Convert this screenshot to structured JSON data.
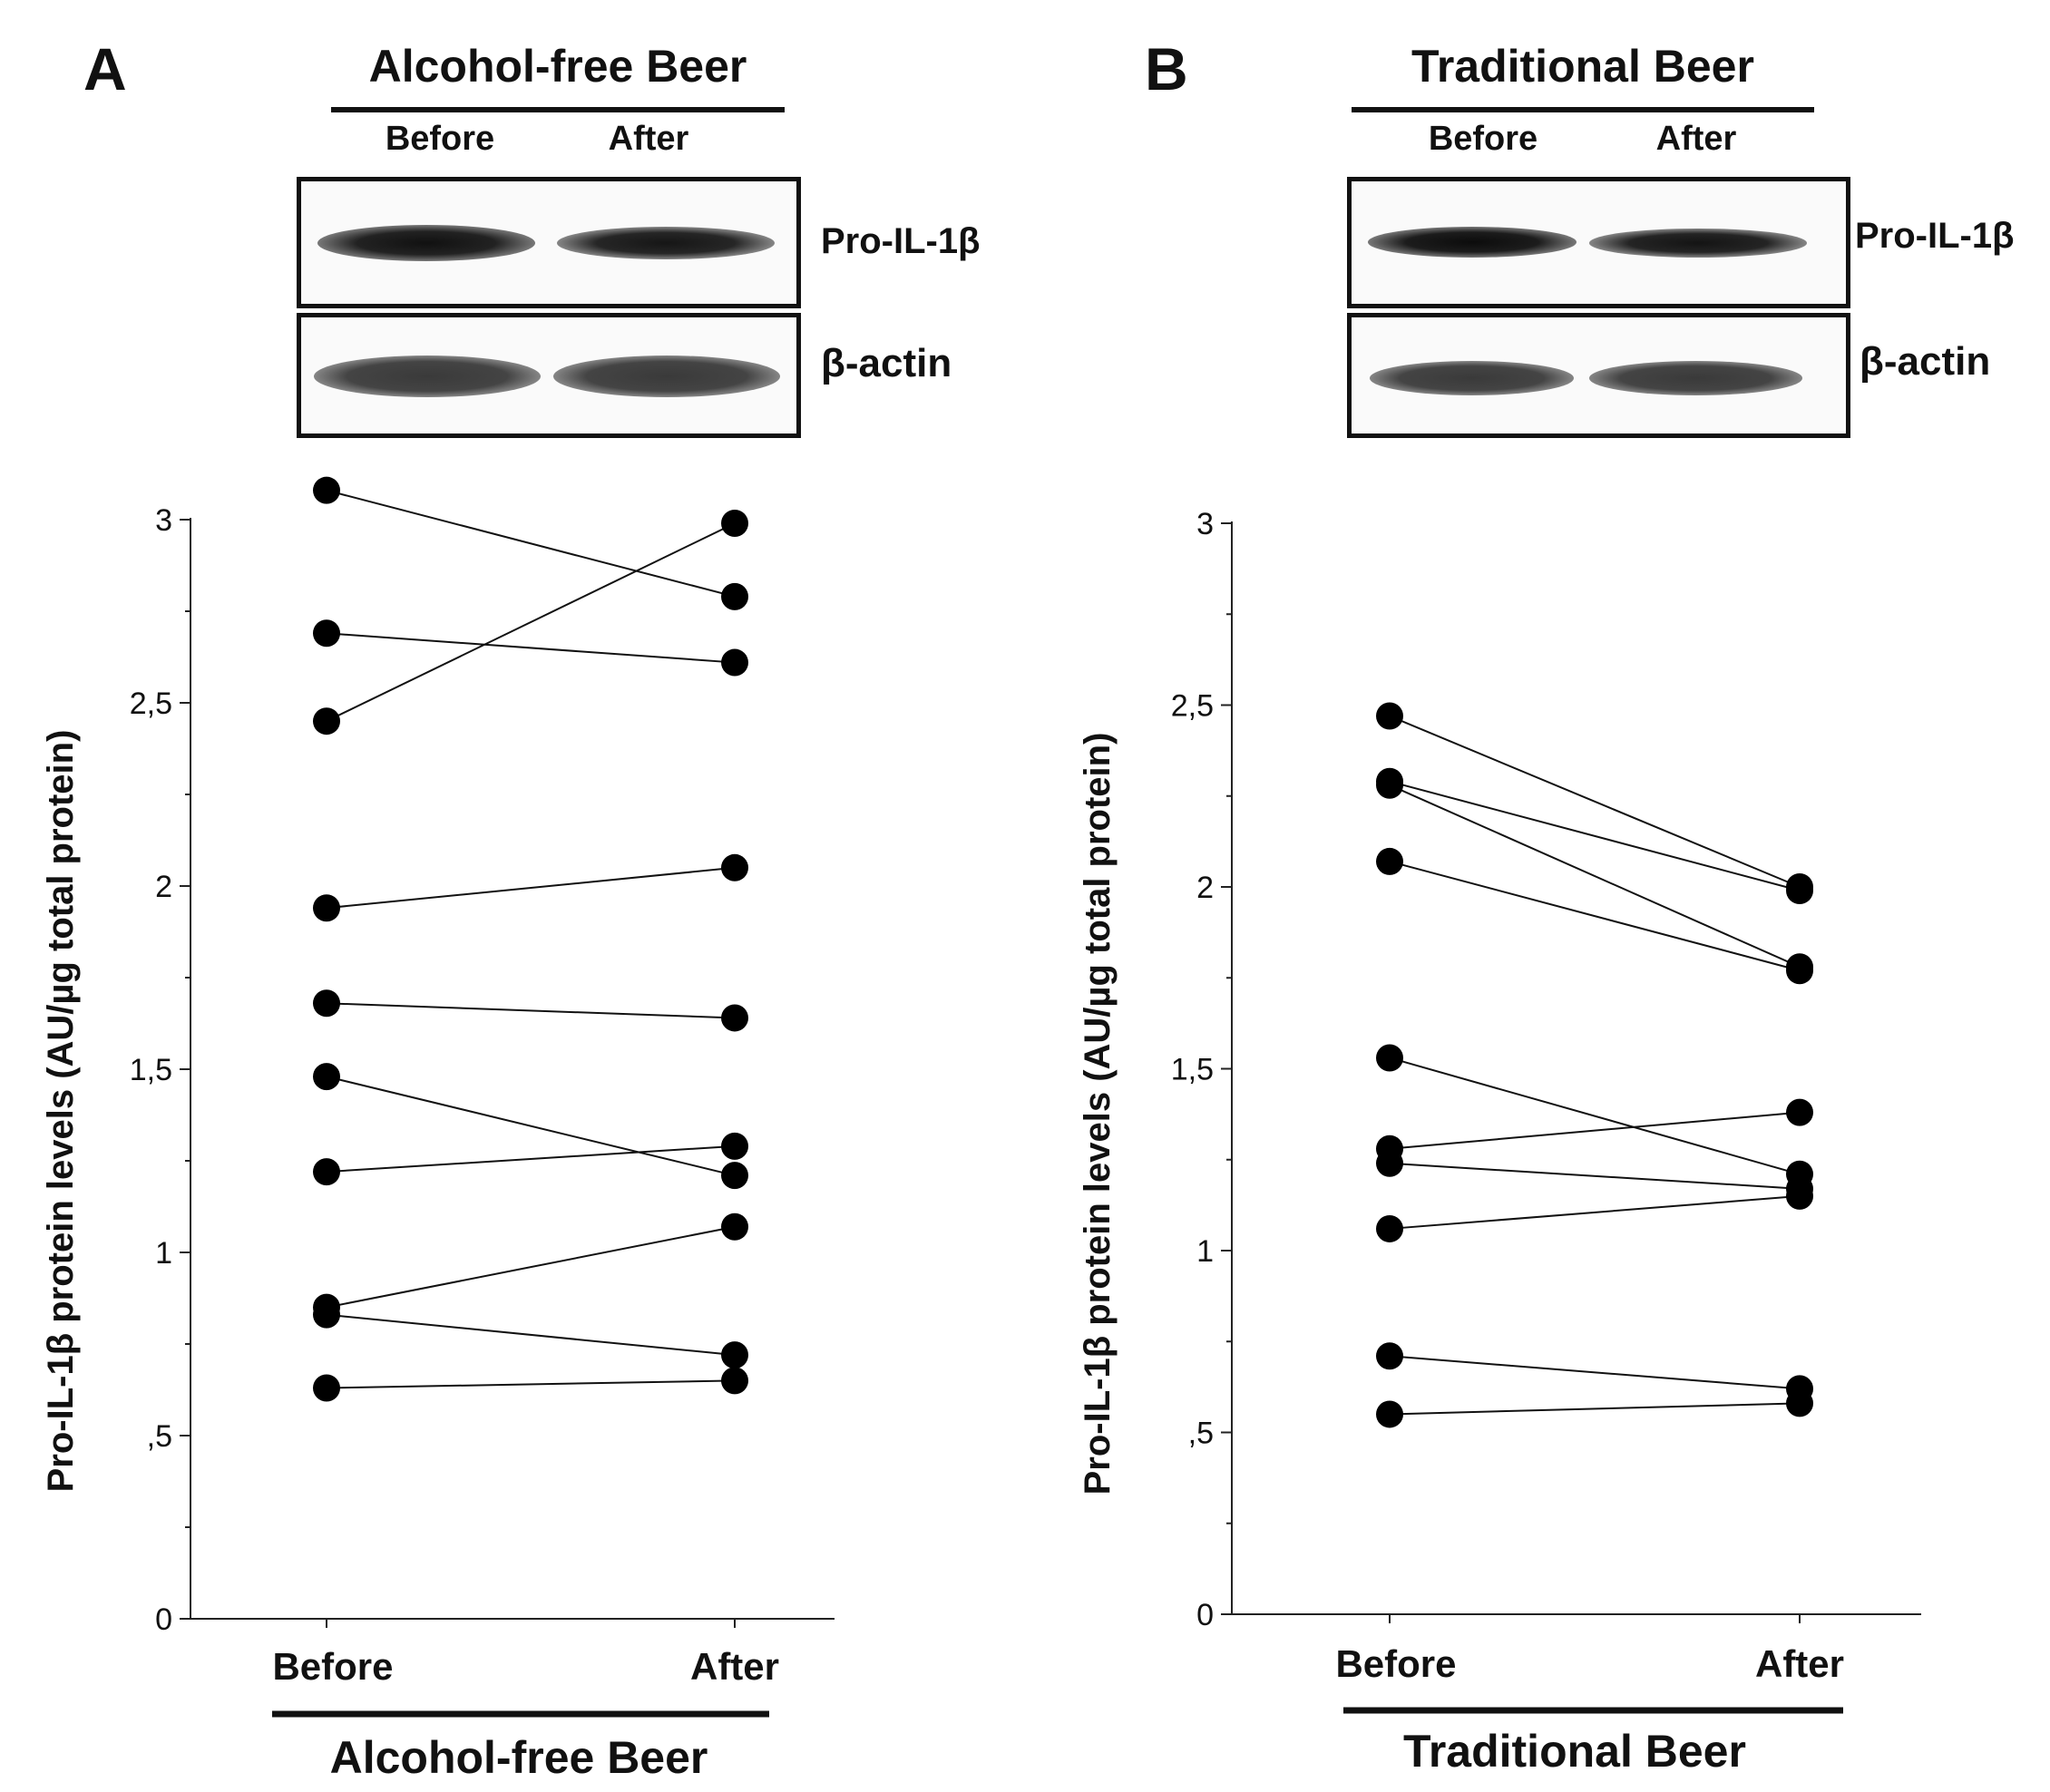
{
  "panels": [
    {
      "letter": "A",
      "blot": {
        "title": "Alcohol-free Beer",
        "lanes": [
          "Before",
          "After"
        ],
        "rows": [
          {
            "label": "Pro-IL-1β"
          },
          {
            "label": "β-actin"
          }
        ]
      },
      "group_label": "Alcohol-free Beer"
    },
    {
      "letter": "B",
      "blot": {
        "title": "Traditional Beer",
        "lanes": [
          "Before",
          "After"
        ],
        "rows": [
          {
            "label": "Pro-IL-1β"
          },
          {
            "label": "β-actin"
          }
        ]
      },
      "group_label": "Traditional Beer"
    }
  ],
  "chart_data": [
    {
      "type": "line",
      "categories": [
        "Before",
        "After"
      ],
      "ylabel": "Pro-IL-1β protein levels (AU/µg total protein)",
      "ylim": [
        0,
        3
      ],
      "yticks": [
        0,
        0.5,
        1,
        1.5,
        2,
        2.5,
        3
      ],
      "ytick_labels": [
        "0",
        ",5",
        "1",
        "1,5",
        "2",
        "2,5",
        "3"
      ],
      "paired_values": [
        [
          3.08,
          2.79
        ],
        [
          2.69,
          2.61
        ],
        [
          2.45,
          2.99
        ],
        [
          1.94,
          2.05
        ],
        [
          1.68,
          1.64
        ],
        [
          1.48,
          1.21
        ],
        [
          1.22,
          1.29
        ],
        [
          0.85,
          1.07
        ],
        [
          0.83,
          0.72
        ],
        [
          0.63,
          0.65
        ]
      ]
    },
    {
      "type": "line",
      "categories": [
        "Before",
        "After"
      ],
      "ylabel": "Pro-IL-1β protein levels (AU/µg total protein)",
      "ylim": [
        0,
        3
      ],
      "yticks": [
        0,
        0.5,
        1,
        1.5,
        2,
        2.5,
        3
      ],
      "ytick_labels": [
        "0",
        ",5",
        "1",
        "1,5",
        "2",
        "2,5",
        "3"
      ],
      "paired_values": [
        [
          2.47,
          2.0
        ],
        [
          2.29,
          1.99
        ],
        [
          2.28,
          1.78
        ],
        [
          2.07,
          1.77
        ],
        [
          1.53,
          1.21
        ],
        [
          1.28,
          1.38
        ],
        [
          1.24,
          1.17
        ],
        [
          1.06,
          1.15
        ],
        [
          0.71,
          0.62
        ],
        [
          0.55,
          0.58
        ]
      ]
    }
  ]
}
